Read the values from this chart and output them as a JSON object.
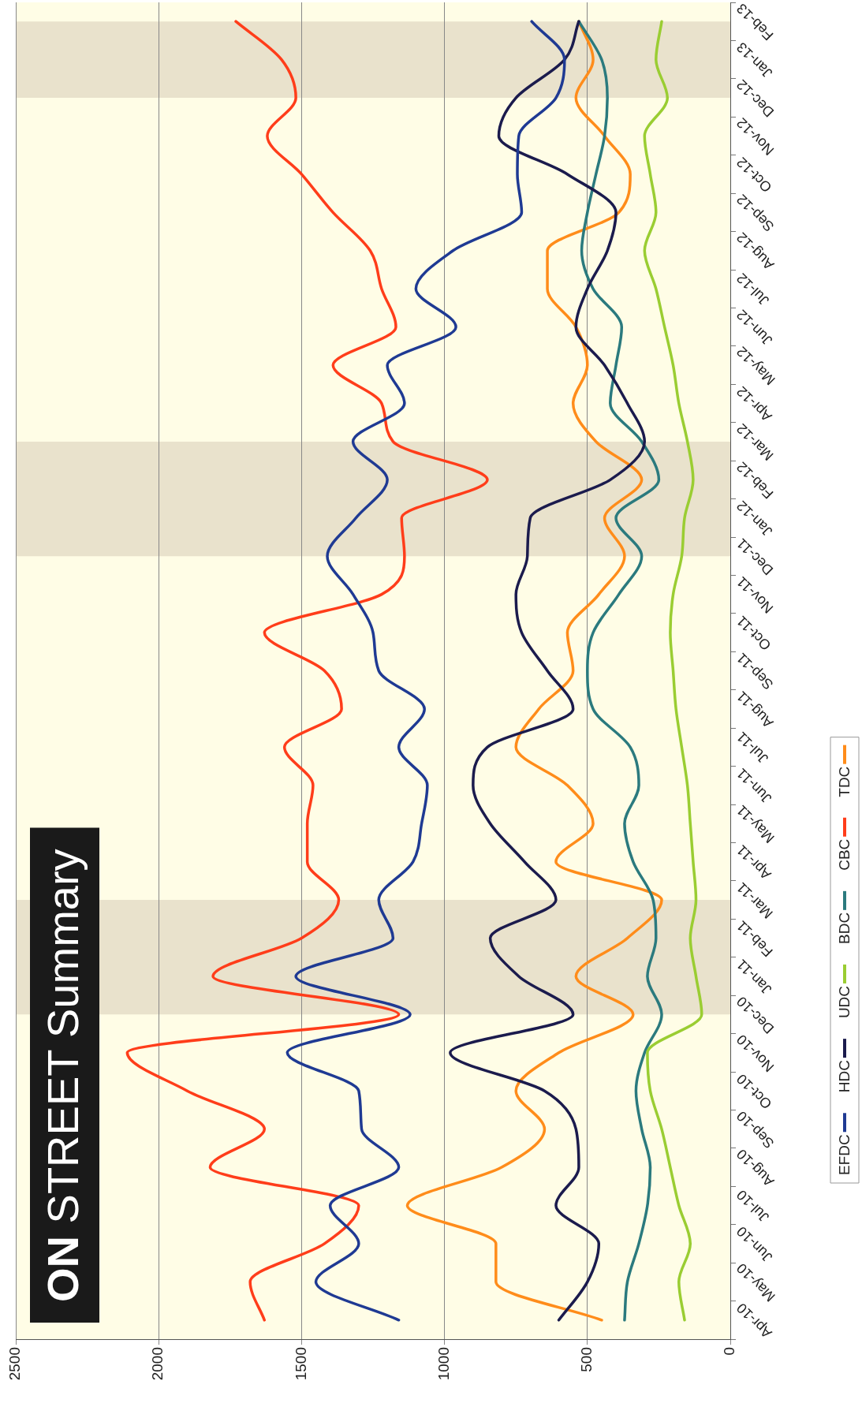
{
  "chart_data": {
    "type": "line",
    "title": "ON STREET Summary",
    "orientation": "horizontal",
    "categories": [
      "Feb-13",
      "Jan-13",
      "Dec-12",
      "Nov-12",
      "Oct-12",
      "Sep-12",
      "Aug-12",
      "Jul-12",
      "Jun-12",
      "May-12",
      "Apr-12",
      "Mar-12",
      "Feb-12",
      "Jan-12",
      "Dec-11",
      "Nov-11",
      "Oct-11",
      "Sep-11",
      "Aug-11",
      "Jul-11",
      "Jun-11",
      "May-11",
      "Apr-11",
      "Mar-11",
      "Feb-11",
      "Jan-11",
      "Dec-10",
      "Nov-10",
      "Oct-10",
      "Sep-10",
      "Aug-10",
      "Jul-10",
      "Jun-10",
      "May-10",
      "Apr-10"
    ],
    "series": [
      {
        "name": "EFDC",
        "color": "#1f3a93",
        "values": [
          695,
          580,
          610,
          740,
          745,
          730,
          970,
          1100,
          960,
          1200,
          1140,
          1320,
          1200,
          1310,
          1410,
          1320,
          1250,
          1230,
          1070,
          1160,
          1060,
          1080,
          1110,
          1230,
          1180,
          1520,
          1120,
          1550,
          1300,
          1290,
          1160,
          1400,
          1300,
          1450,
          1160
        ]
      },
      {
        "name": "HDC",
        "color": "#1b1b4d",
        "values": [
          530,
          580,
          750,
          810,
          570,
          400,
          430,
          500,
          540,
          440,
          360,
          300,
          420,
          700,
          710,
          750,
          730,
          640,
          550,
          850,
          900,
          840,
          720,
          610,
          840,
          740,
          550,
          980,
          650,
          540,
          530,
          610,
          460,
          500,
          600
        ]
      },
      {
        "name": "UDC",
        "color": "#9acd32",
        "values": [
          240,
          260,
          220,
          300,
          280,
          260,
          300,
          260,
          230,
          200,
          180,
          150,
          130,
          160,
          170,
          200,
          210,
          200,
          190,
          170,
          150,
          140,
          130,
          120,
          140,
          120,
          100,
          290,
          280,
          240,
          210,
          180,
          140,
          180,
          160
        ]
      },
      {
        "name": "BDC",
        "color": "#2b7a7e",
        "values": [
          530,
          450,
          430,
          440,
          470,
          500,
          520,
          480,
          380,
          400,
          420,
          310,
          250,
          400,
          310,
          390,
          480,
          500,
          480,
          350,
          320,
          370,
          340,
          270,
          260,
          290,
          240,
          300,
          330,
          310,
          280,
          290,
          320,
          360,
          370
        ]
      },
      {
        "name": "CBC",
        "color": "#ff3d1a",
        "values": [
          1730,
          1570,
          1520,
          1620,
          1500,
          1390,
          1260,
          1220,
          1170,
          1390,
          1220,
          1180,
          850,
          1150,
          1140,
          1220,
          1630,
          1420,
          1360,
          1560,
          1460,
          1480,
          1480,
          1370,
          1500,
          1810,
          1160,
          2110,
          1900,
          1630,
          1820,
          1300,
          1420,
          1680,
          1630
        ]
      },
      {
        "name": "TDC",
        "color": "#ff8c1a",
        "values": [
          530,
          480,
          540,
          440,
          350,
          390,
          640,
          640,
          540,
          500,
          550,
          470,
          310,
          440,
          370,
          460,
          570,
          550,
          670,
          750,
          570,
          480,
          610,
          240,
          360,
          540,
          340,
          600,
          750,
          650,
          800,
          1130,
          820,
          820,
          450
        ]
      }
    ],
    "xlim": [
      2500,
      0
    ],
    "xticks": [
      2500,
      2000,
      1500,
      1000,
      500,
      0
    ],
    "grid": "x",
    "legend": "right",
    "marker": "none",
    "bands": [
      {
        "axis": "y",
        "from": "Mar-11",
        "to": "Dec-10",
        "color": "#e9e2cc"
      },
      {
        "axis": "y",
        "from": "Mar-12",
        "to": "Dec-11",
        "color": "#e9e2cc"
      },
      {
        "axis": "y",
        "from": "Feb-13",
        "to": "Dec-12",
        "color": "#e9e2cc"
      }
    ]
  }
}
